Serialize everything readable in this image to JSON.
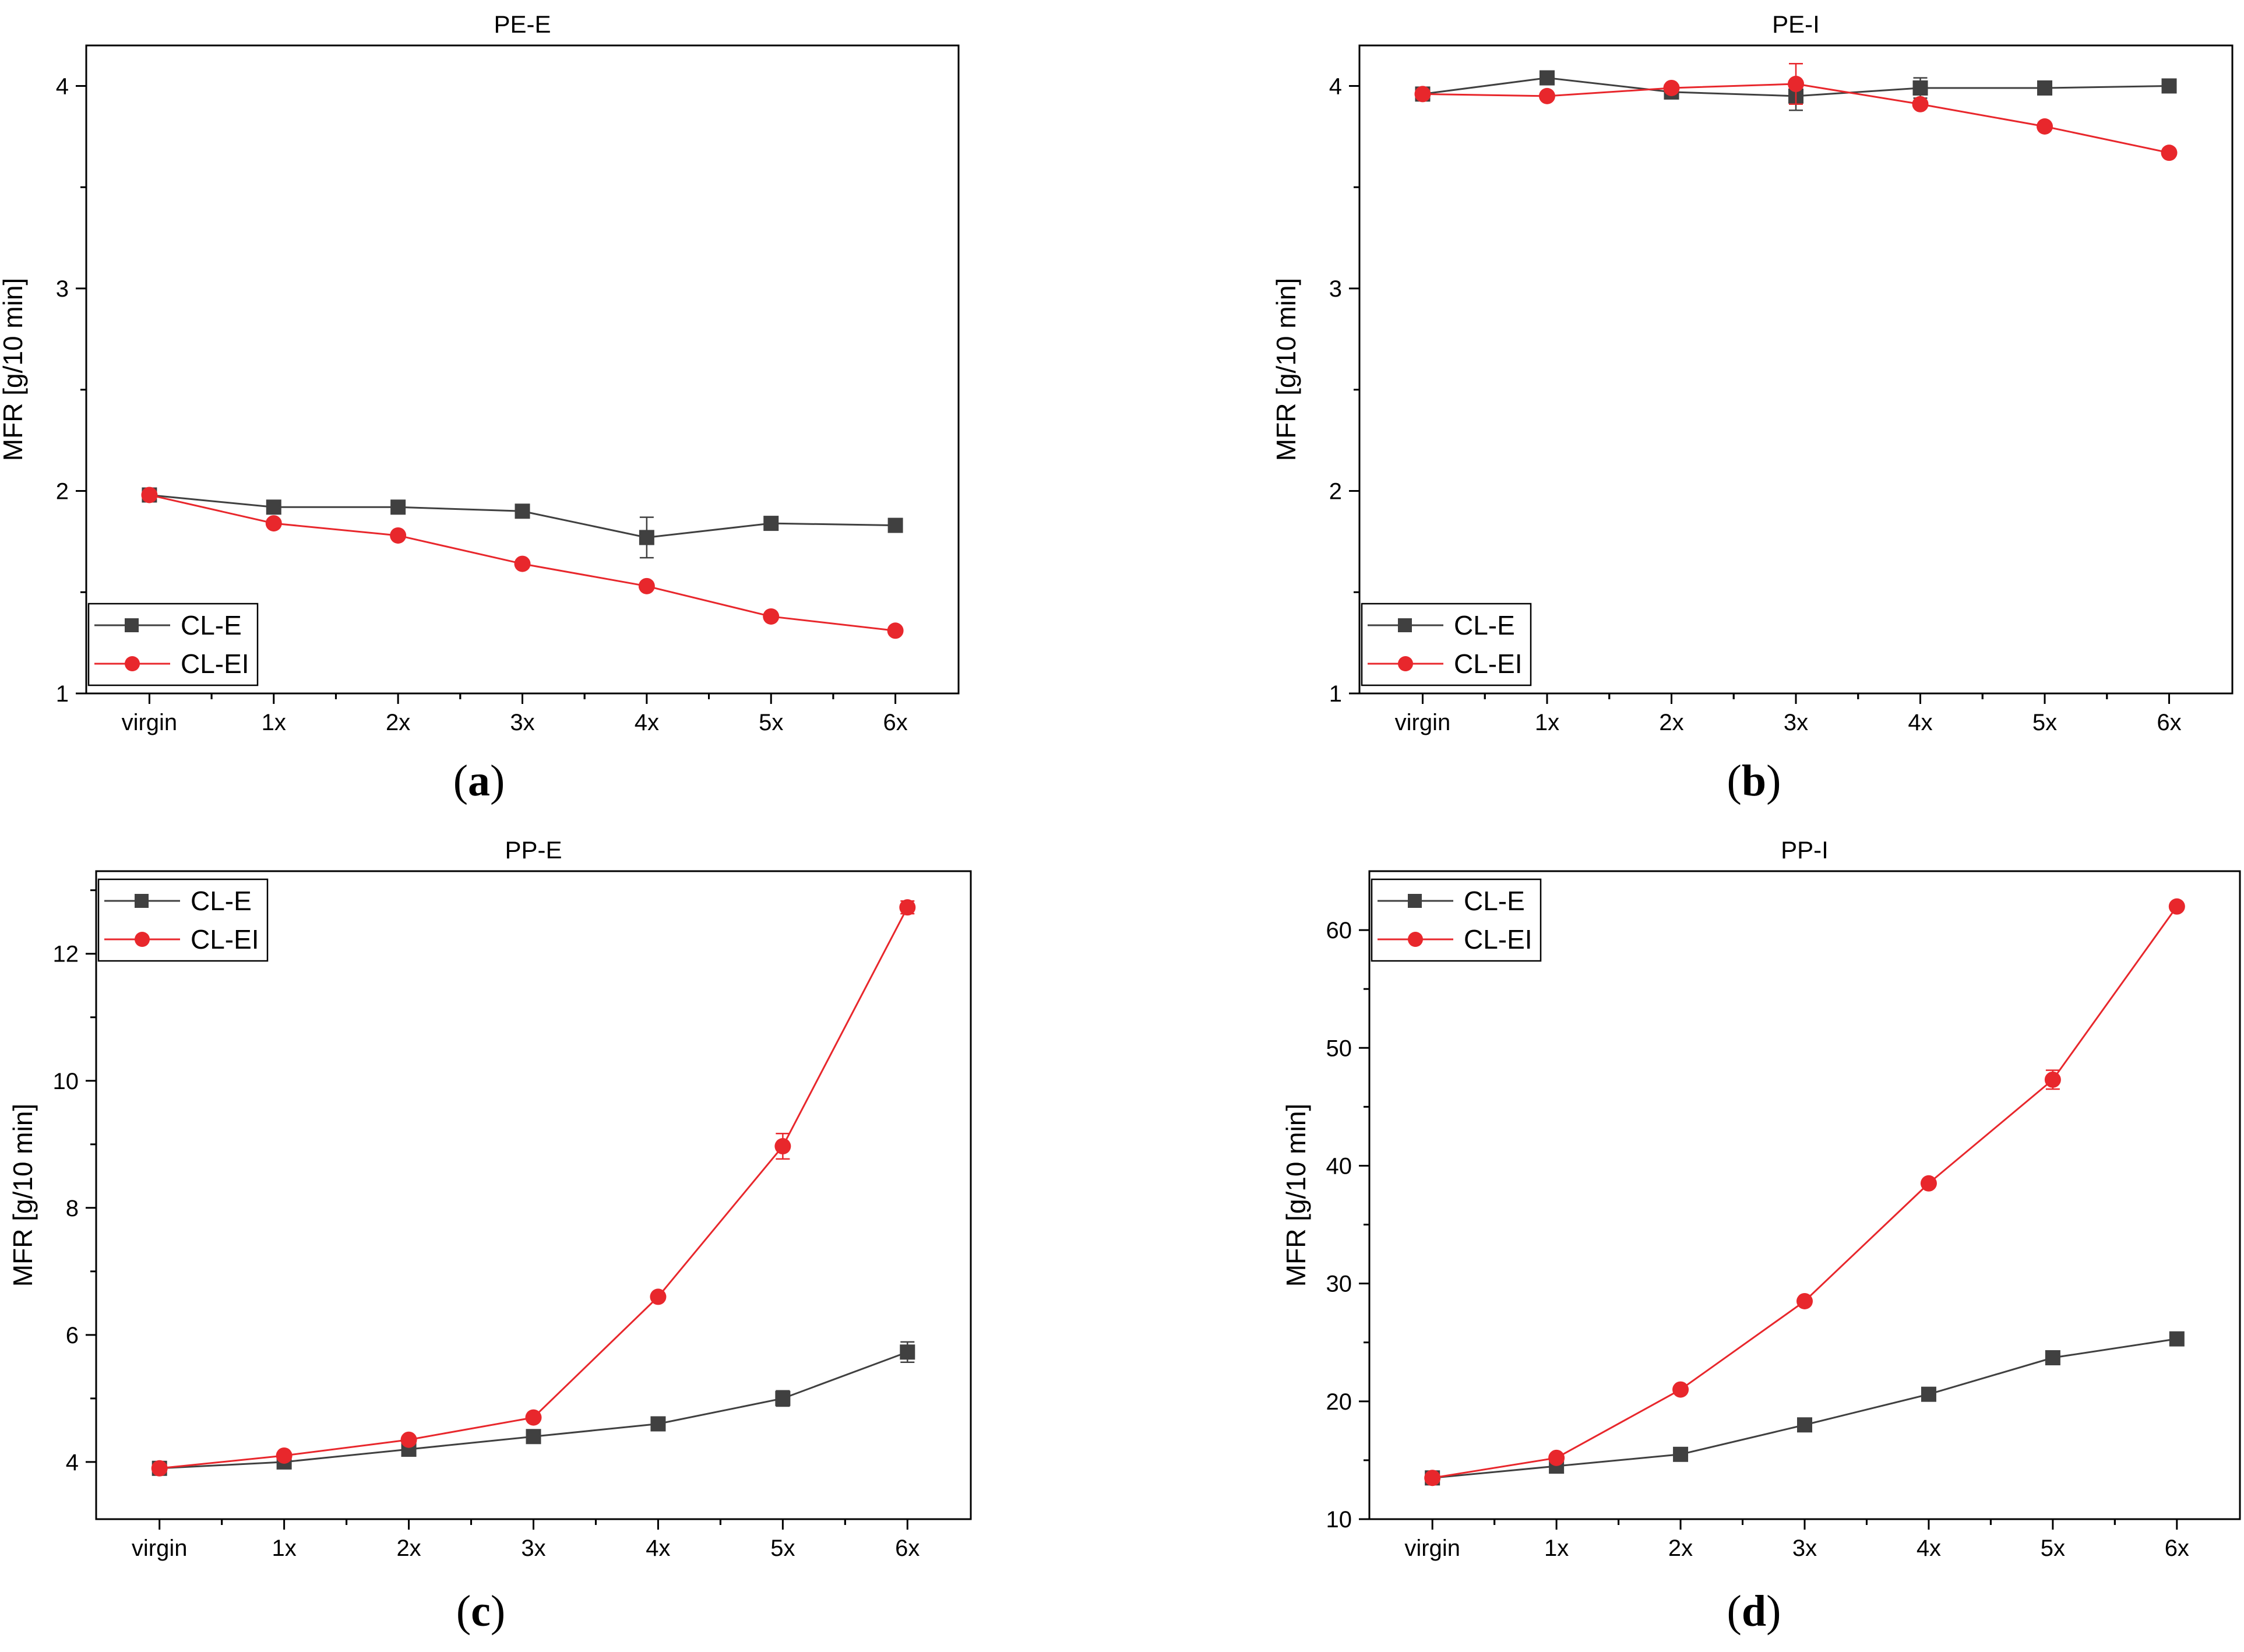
{
  "figure": {
    "panels": [
      {
        "id": "a",
        "caption_open": "(",
        "caption_letter": "a",
        "caption_close": ")"
      },
      {
        "id": "b",
        "caption_open": "(",
        "caption_letter": "b",
        "caption_close": ")"
      },
      {
        "id": "c",
        "caption_open": "(",
        "caption_letter": "c",
        "caption_close": ")"
      },
      {
        "id": "d",
        "caption_open": "(",
        "caption_letter": "d",
        "caption_close": ")"
      }
    ]
  },
  "colors": {
    "cl_e": "#404040",
    "cl_ei": "#e8272c",
    "axis": "#000000"
  },
  "chart_data": [
    {
      "type": "line",
      "title": "PE-E",
      "xlabel": "",
      "ylabel": "MFR [g/10 min]",
      "categories": [
        "virgin",
        "1x",
        "2x",
        "3x",
        "4x",
        "5x",
        "6x"
      ],
      "ylim": [
        1,
        4.2
      ],
      "yticks": [
        1,
        2,
        3,
        4
      ],
      "legend": "bottom-left",
      "series": [
        {
          "name": "CL-E",
          "marker": "square",
          "values": [
            1.98,
            1.92,
            1.92,
            1.9,
            1.77,
            1.84,
            1.83
          ],
          "errors": [
            0.01,
            0.01,
            0.01,
            0.01,
            0.1,
            0.01,
            0.01
          ]
        },
        {
          "name": "CL-EI",
          "marker": "circle",
          "values": [
            1.98,
            1.84,
            1.78,
            1.64,
            1.53,
            1.38,
            1.31
          ],
          "errors": [
            0.01,
            0.01,
            0.01,
            0.01,
            0.01,
            0.01,
            0.01
          ]
        }
      ]
    },
    {
      "type": "line",
      "title": "PE-I",
      "xlabel": "",
      "ylabel": "MFR [g/10 min]",
      "categories": [
        "virgin",
        "1x",
        "2x",
        "3x",
        "4x",
        "5x",
        "6x"
      ],
      "ylim": [
        1,
        4.2
      ],
      "yticks": [
        1,
        2,
        3,
        4
      ],
      "legend": "bottom-left",
      "series": [
        {
          "name": "CL-E",
          "marker": "square",
          "values": [
            3.96,
            4.04,
            3.97,
            3.95,
            3.99,
            3.99,
            4.0
          ],
          "errors": [
            0.01,
            0.01,
            0.01,
            0.07,
            0.05,
            0.01,
            0.01
          ]
        },
        {
          "name": "CL-EI",
          "marker": "circle",
          "values": [
            3.96,
            3.95,
            3.99,
            4.01,
            3.91,
            3.8,
            3.67
          ],
          "errors": [
            0.01,
            0.01,
            0.01,
            0.1,
            0.01,
            0.01,
            0.01
          ]
        }
      ]
    },
    {
      "type": "line",
      "title": "PP-E",
      "xlabel": "",
      "ylabel": "MFR [g/10 min]",
      "categories": [
        "virgin",
        "1x",
        "2x",
        "3x",
        "4x",
        "5x",
        "6x"
      ],
      "ylim": [
        3.1,
        13.3
      ],
      "yticks": [
        4,
        6,
        8,
        10,
        12
      ],
      "legend": "top-left",
      "series": [
        {
          "name": "CL-E",
          "marker": "square",
          "values": [
            3.9,
            4.0,
            4.2,
            4.4,
            4.6,
            5.0,
            5.73
          ],
          "errors": [
            0.05,
            0.05,
            0.05,
            0.05,
            0.05,
            0.12,
            0.16
          ]
        },
        {
          "name": "CL-EI",
          "marker": "circle",
          "values": [
            3.9,
            4.1,
            4.35,
            4.7,
            6.6,
            8.97,
            12.73
          ],
          "errors": [
            0.05,
            0.05,
            0.05,
            0.05,
            0.05,
            0.2,
            0.1
          ]
        }
      ]
    },
    {
      "type": "line",
      "title": "PP-I",
      "xlabel": "",
      "ylabel": "MFR [g/10 min]",
      "categories": [
        "virgin",
        "1x",
        "2x",
        "3x",
        "4x",
        "5x",
        "6x"
      ],
      "ylim": [
        10,
        65
      ],
      "yticks": [
        10,
        20,
        30,
        40,
        50,
        60
      ],
      "legend": "top-left",
      "series": [
        {
          "name": "CL-E",
          "marker": "square",
          "values": [
            13.5,
            14.5,
            15.5,
            18.0,
            20.6,
            23.7,
            25.3
          ],
          "errors": [
            0.3,
            0.3,
            0.3,
            0.3,
            0.3,
            0.4,
            0.3
          ]
        },
        {
          "name": "CL-EI",
          "marker": "circle",
          "values": [
            13.5,
            15.2,
            21.0,
            28.5,
            38.5,
            47.3,
            62.0
          ],
          "errors": [
            0.3,
            0.3,
            0.3,
            0.3,
            0.3,
            0.8,
            0.3
          ]
        }
      ]
    }
  ]
}
